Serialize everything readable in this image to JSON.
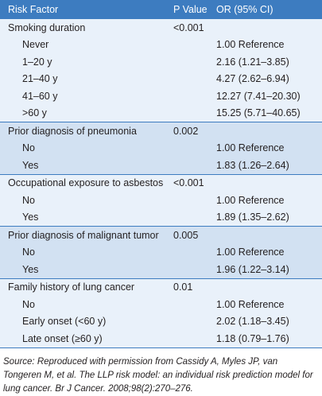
{
  "header": [
    "Risk Factor",
    "P Value",
    "OR (95% CI)"
  ],
  "groups": [
    {
      "label": "Smoking duration",
      "p": "<0.001",
      "rows": [
        {
          "label": "Never",
          "or": "1.00 Reference"
        },
        {
          "label": "1–20 y",
          "or": "2.16 (1.21–3.85)"
        },
        {
          "label": "21–40 y",
          "or": "4.27 (2.62–6.94)"
        },
        {
          "label": "41–60 y",
          "or": "12.27 (7.41–20.30)"
        },
        {
          "label": ">60 y",
          "or": "15.25 (5.71–40.65)"
        }
      ]
    },
    {
      "label": "Prior diagnosis of pneumonia",
      "p": "0.002",
      "rows": [
        {
          "label": "No",
          "or": "1.00 Reference"
        },
        {
          "label": "Yes",
          "or": "1.83 (1.26–2.64)"
        }
      ]
    },
    {
      "label": "Occupational exposure to asbestos",
      "p": "<0.001",
      "rows": [
        {
          "label": "No",
          "or": "1.00 Reference"
        },
        {
          "label": "Yes",
          "or": "1.89 (1.35–2.62)"
        }
      ]
    },
    {
      "label": "Prior diagnosis of malignant tumor",
      "p": "0.005",
      "rows": [
        {
          "label": "No",
          "or": "1.00 Reference"
        },
        {
          "label": "Yes",
          "or": "1.96 (1.22–3.14)"
        }
      ]
    },
    {
      "label": "Family history of lung cancer",
      "p": "0.01",
      "rows": [
        {
          "label": "No",
          "or": "1.00 Reference"
        },
        {
          "label": "Early onset (<60 y)",
          "or": "2.02 (1.18–3.45)"
        },
        {
          "label": "Late onset (≥60 y)",
          "or": "1.18 (0.79–1.76)"
        }
      ]
    }
  ],
  "source": "Source: Reproduced with permission from Cassidy A, Myles JP, van Tongeren M, et al. The LLP risk model: an individual risk prediction model for lung cancer. Br J Cancer. 2008;98(2):270–276."
}
